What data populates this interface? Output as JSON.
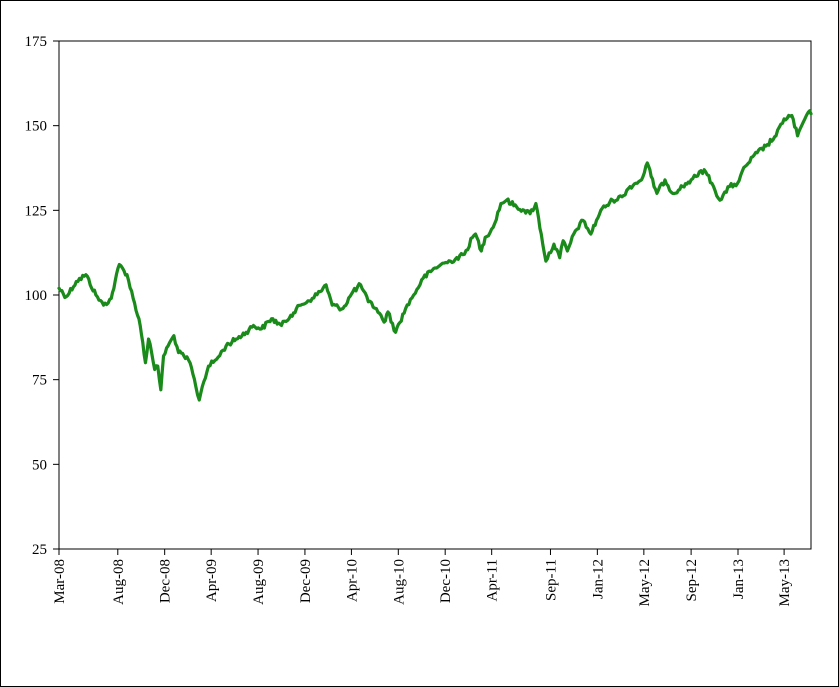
{
  "chart_data": {
    "type": "line",
    "title": "",
    "xlabel": "",
    "ylabel": "",
    "ylim": [
      25,
      175
    ],
    "yticks": [
      25,
      50,
      75,
      100,
      125,
      150,
      175
    ],
    "xticks": [
      "Mar-08",
      "Aug-08",
      "Dec-08",
      "Apr-09",
      "Aug-09",
      "Dec-09",
      "Apr-10",
      "Aug-10",
      "Dec-10",
      "Apr-11",
      "Sep-11",
      "Jan-12",
      "May-12",
      "Sep-12",
      "Jan-13",
      "May-13"
    ],
    "xlim": [
      "2008-03-01",
      "2013-07-10"
    ],
    "grid": false,
    "legend": "none",
    "series": [
      {
        "color": "#1a8a1a",
        "x": [
          "2008-03-01",
          "2008-03-20",
          "2008-04-15",
          "2008-05-10",
          "2008-06-05",
          "2008-06-25",
          "2008-07-15",
          "2008-07-25",
          "2008-08-05",
          "2008-08-25",
          "2008-09-10",
          "2008-09-25",
          "2008-10-05",
          "2008-10-12",
          "2008-10-20",
          "2008-10-28",
          "2008-11-05",
          "2008-11-13",
          "2008-11-21",
          "2008-11-28",
          "2008-12-10",
          "2008-12-25",
          "2009-01-06",
          "2009-01-20",
          "2009-02-05",
          "2009-02-20",
          "2009-03-01",
          "2009-03-09",
          "2009-03-25",
          "2009-04-15",
          "2009-05-10",
          "2009-06-05",
          "2009-07-01",
          "2009-07-20",
          "2009-08-10",
          "2009-09-05",
          "2009-10-01",
          "2009-10-25",
          "2009-11-20",
          "2009-12-20",
          "2010-01-10",
          "2010-01-25",
          "2010-02-10",
          "2010-03-10",
          "2010-04-05",
          "2010-04-25",
          "2010-05-15",
          "2010-06-05",
          "2010-06-25",
          "2010-07-05",
          "2010-07-25",
          "2010-08-20",
          "2010-09-10",
          "2010-10-05",
          "2010-11-05",
          "2010-11-20",
          "2010-12-15",
          "2011-01-20",
          "2011-02-10",
          "2011-02-18",
          "2011-03-05",
          "2011-03-15",
          "2011-04-05",
          "2011-04-25",
          "2011-05-10",
          "2011-06-05",
          "2011-06-25",
          "2011-07-10",
          "2011-07-25",
          "2011-08-08",
          "2011-08-20",
          "2011-09-10",
          "2011-09-25",
          "2011-10-04",
          "2011-10-15",
          "2011-11-05",
          "2011-11-25",
          "2011-12-15",
          "2012-01-10",
          "2012-02-10",
          "2012-03-05",
          "2012-03-26",
          "2012-04-10",
          "2012-04-25",
          "2012-05-10",
          "2012-05-20",
          "2012-06-04",
          "2012-06-25",
          "2012-07-15",
          "2012-08-10",
          "2012-09-01",
          "2012-09-14",
          "2012-10-05",
          "2012-10-25",
          "2012-11-15",
          "2012-12-10",
          "2012-12-31",
          "2013-01-20",
          "2013-02-20",
          "2013-03-15",
          "2013-04-10",
          "2013-05-01",
          "2013-05-21",
          "2013-06-05",
          "2013-06-24",
          "2013-07-03",
          "2013-07-10"
        ],
        "y": [
          102,
          99.5,
          104,
          106,
          100,
          97,
          99,
          104,
          109,
          106,
          99,
          93,
          86,
          80,
          87,
          83,
          78,
          79,
          72,
          82,
          85,
          88,
          83,
          82,
          80,
          73,
          69,
          73,
          79,
          81,
          85,
          87,
          89,
          91,
          90,
          93,
          91,
          94,
          97,
          99,
          101,
          103,
          97,
          96,
          101,
          103,
          98,
          96,
          92,
          95,
          89,
          96,
          100,
          105,
          108,
          109,
          110,
          112,
          117,
          118,
          113,
          117,
          120,
          127,
          128,
          126,
          125,
          124,
          127,
          118,
          110,
          115,
          111,
          116,
          113,
          119,
          122,
          118,
          125,
          128,
          129,
          132,
          133,
          134,
          139,
          135,
          130,
          134,
          130,
          132,
          134,
          135,
          137,
          133,
          128,
          132,
          133,
          138,
          142,
          144,
          147,
          152,
          153,
          147,
          152,
          154,
          153.5
        ]
      }
    ]
  }
}
